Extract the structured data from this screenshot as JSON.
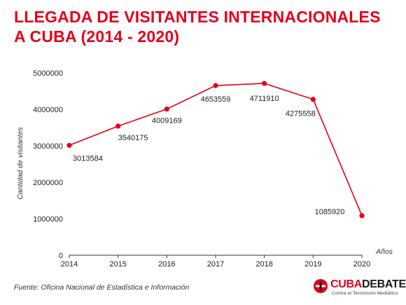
{
  "chart_data": {
    "type": "line",
    "title_lines": [
      "LLEGADA DE VISITANTES INTERNACIONALES",
      "A CUBA (2014 - 2020)"
    ],
    "xlabel": "Años",
    "ylabel": "Cantidad de visitantes",
    "x": [
      "2014",
      "2015",
      "2016",
      "2017",
      "2018",
      "2019",
      "2020"
    ],
    "values": [
      3013584,
      3540175,
      4009169,
      4653559,
      4711910,
      4275558,
      1085920
    ],
    "data_labels": [
      "3013584",
      "3540175",
      "4009169",
      "4653559",
      "4711910",
      "4275558",
      "1085920"
    ],
    "ylim": [
      0,
      5000000
    ],
    "yticks": [
      0,
      1000000,
      2000000,
      3000000,
      4000000,
      5000000
    ],
    "ytick_labels": [
      "0",
      "1000000",
      "2000000",
      "3000000",
      "4000000",
      "5000000"
    ],
    "grid": false,
    "line_color": "#e3001b"
  },
  "source": "Fuente: Oficina Nacional de Estadística e Información",
  "logo": {
    "part1": "CUBA",
    "part2": "DEBATE",
    "subtitle": "Contra el Terrorismo Mediático",
    "icon": "cubadebate-logo-icon",
    "color": "#e3001b"
  }
}
